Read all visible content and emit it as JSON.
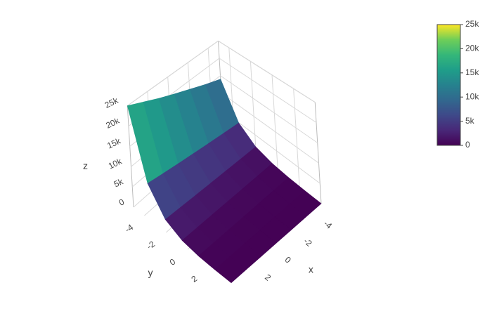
{
  "chart_data": {
    "type": "surface",
    "x": [
      -5,
      -3.5,
      -2,
      -0.5,
      1,
      2.5,
      4
    ],
    "y": [
      -5,
      -3.5,
      -2,
      -0.5,
      1,
      2.5,
      4
    ],
    "z": [
      [
        14000,
        15800,
        17700,
        19500,
        21300,
        23200,
        25000
      ],
      [
        4900,
        5540,
        6190,
        6830,
        7460,
        8110,
        8750
      ],
      [
        1710,
        1930,
        2160,
        2380,
        2600,
        2830,
        3050
      ],
      [
        600,
        680,
        760,
        840,
        920,
        990,
        1070
      ],
      [
        210,
        240,
        270,
        290,
        320,
        350,
        375
      ],
      [
        73,
        83,
        93,
        102,
        112,
        122,
        131
      ],
      [
        26,
        29,
        33,
        36,
        39,
        43,
        46
      ]
    ],
    "xlim": [
      -5,
      4
    ],
    "ylim": [
      -5,
      4
    ],
    "zlim": [
      0,
      25000
    ],
    "xticks": [
      -4,
      -2,
      0,
      2
    ],
    "yticks": [
      -4,
      -2,
      0,
      2
    ],
    "zticks": [
      0,
      {
        "value": 5000,
        "label": "5k"
      },
      {
        "value": 10000,
        "label": "10k"
      },
      {
        "value": 15000,
        "label": "15k"
      },
      {
        "value": 20000,
        "label": "20k"
      },
      {
        "value": 25000,
        "label": "25k"
      }
    ],
    "xlabel": "x",
    "ylabel": "y",
    "zlabel": "z",
    "colorscale": "Viridis",
    "grid": true
  }
}
